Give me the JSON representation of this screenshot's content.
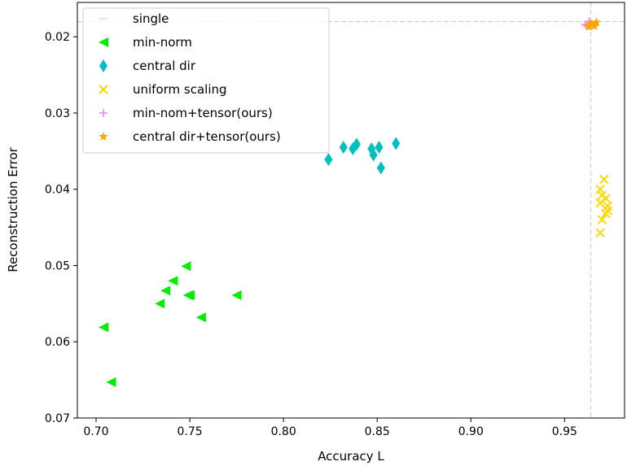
{
  "chart_data": {
    "type": "scatter",
    "xlabel": "Accuracy L",
    "ylabel": "Reconstruction Error",
    "xlim": [
      0.69,
      0.982
    ],
    "ylim": [
      0.07,
      0.0155
    ],
    "y_inverted": true,
    "xticks": [
      "0.70",
      "0.75",
      "0.80",
      "0.85",
      "0.90",
      "0.95"
    ],
    "yticks": [
      "0.02",
      "0.03",
      "0.04",
      "0.05",
      "0.06",
      "0.07"
    ],
    "reference_lines": {
      "name": "single",
      "x": 0.964,
      "y": 0.018,
      "color": "#cccccc",
      "style": "dashed"
    },
    "legend_position": "top-left",
    "series": [
      {
        "name": "min-norm",
        "marker": "triangle-left",
        "color": "#00ee00",
        "points": [
          [
            0.748,
            0.0501
          ],
          [
            0.741,
            0.052
          ],
          [
            0.737,
            0.0533
          ],
          [
            0.734,
            0.055
          ],
          [
            0.749,
            0.0539
          ],
          [
            0.75,
            0.0539
          ],
          [
            0.775,
            0.0539
          ],
          [
            0.756,
            0.0568
          ],
          [
            0.704,
            0.0581
          ],
          [
            0.708,
            0.0653
          ]
        ]
      },
      {
        "name": "central dir",
        "marker": "thin-diamond",
        "color": "#00bfbf",
        "points": [
          [
            0.824,
            0.0361
          ],
          [
            0.832,
            0.0345
          ],
          [
            0.837,
            0.0347
          ],
          [
            0.839,
            0.0341
          ],
          [
            0.847,
            0.0347
          ],
          [
            0.848,
            0.0355
          ],
          [
            0.851,
            0.0345
          ],
          [
            0.852,
            0.0372
          ],
          [
            0.86,
            0.034
          ]
        ]
      },
      {
        "name": "uniform scaling",
        "marker": "x",
        "color": "#ffd700",
        "points": [
          [
            0.971,
            0.0387
          ],
          [
            0.969,
            0.04
          ],
          [
            0.97,
            0.0408
          ],
          [
            0.972,
            0.0412
          ],
          [
            0.969,
            0.0418
          ],
          [
            0.973,
            0.0422
          ],
          [
            0.973,
            0.0428
          ],
          [
            0.972,
            0.0432
          ],
          [
            0.97,
            0.044
          ],
          [
            0.969,
            0.0457
          ]
        ]
      },
      {
        "name": "min-nom+tensor(ours)",
        "marker": "plus",
        "color": "#ee82ee",
        "points": [
          [
            0.961,
            0.0184
          ],
          [
            0.963,
            0.018
          ],
          [
            0.962,
            0.0186
          ],
          [
            0.964,
            0.0183
          ]
        ]
      },
      {
        "name": "central dir+tensor(ours)",
        "marker": "star",
        "color": "#ffa500",
        "points": [
          [
            0.963,
            0.0185
          ],
          [
            0.964,
            0.0182
          ],
          [
            0.965,
            0.0184
          ],
          [
            0.966,
            0.0186
          ],
          [
            0.967,
            0.0181
          ],
          [
            0.963,
            0.0187
          ]
        ]
      }
    ]
  }
}
